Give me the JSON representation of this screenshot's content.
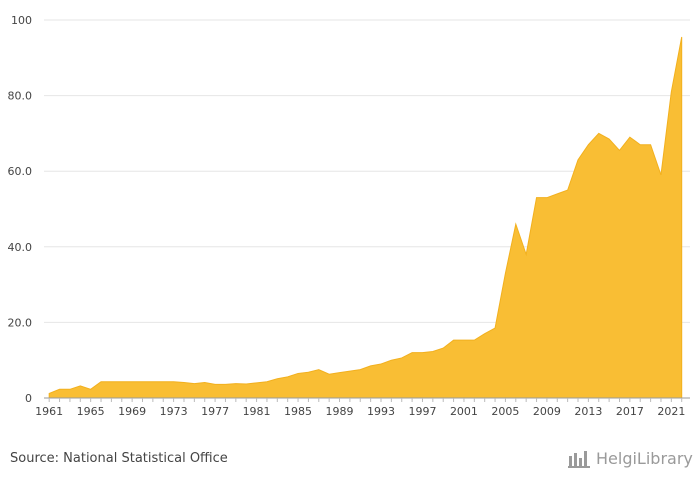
{
  "chart_data": {
    "type": "area",
    "title": "",
    "xlabel": "",
    "ylabel": "",
    "ylim": [
      0,
      100
    ],
    "yticks": [
      "0",
      "20.0",
      "40.0",
      "60.0",
      "80.0",
      "100"
    ],
    "xticks": [
      "1961",
      "1965",
      "1969",
      "1973",
      "1977",
      "1981",
      "1985",
      "1989",
      "1993",
      "1997",
      "2001",
      "2005",
      "2009",
      "2013",
      "2017",
      "2021"
    ],
    "grid": true,
    "color": "#F9BE34",
    "series": [
      {
        "x": [
          1961,
          1962,
          1963,
          1964,
          1965,
          1966,
          1967,
          1968,
          1969,
          1970,
          1971,
          1972,
          1973,
          1974,
          1975,
          1976,
          1977,
          1978,
          1979,
          1980,
          1981,
          1982,
          1983,
          1984,
          1985,
          1986,
          1987,
          1988,
          1989,
          1990,
          1991,
          1992,
          1993,
          1994,
          1995,
          1996,
          1997,
          1998,
          1999,
          2000,
          2001,
          2002,
          2003,
          2004,
          2005,
          2006,
          2007,
          2008,
          2009,
          2010,
          2011,
          2012,
          2013,
          2014,
          2015,
          2016,
          2017,
          2018,
          2019,
          2020,
          2021,
          2022
        ],
        "y": [
          1.2,
          2.3,
          2.3,
          3.2,
          2.3,
          4.3,
          4.3,
          4.3,
          4.3,
          4.3,
          4.3,
          4.3,
          4.3,
          4.1,
          3.8,
          4.1,
          3.6,
          3.6,
          3.8,
          3.7,
          4.0,
          4.3,
          5.1,
          5.6,
          6.5,
          6.8,
          7.5,
          6.3,
          6.7,
          7.1,
          7.5,
          8.5,
          9.0,
          10.0,
          10.6,
          12.0,
          12.0,
          12.3,
          13.2,
          15.3,
          15.3,
          15.3,
          17.0,
          18.5,
          33.0,
          46.0,
          38.0,
          53.0,
          53.0,
          54.0,
          55.0,
          63.0,
          67.0,
          70.0,
          68.5,
          65.5,
          69.0,
          67.0,
          67.0,
          59.0,
          81.0,
          95.5
        ]
      }
    ]
  },
  "footer": {
    "source": "Source: National Statistical Office",
    "brand": "HelgiLibrary"
  }
}
